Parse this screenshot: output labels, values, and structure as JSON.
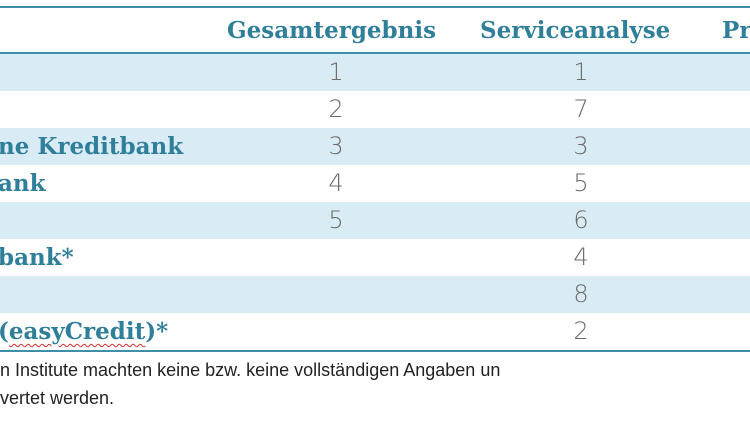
{
  "table": {
    "headers": {
      "gesamt": "Gesamtergebnis",
      "service": "Serviceanalyse",
      "partial": "Pr"
    },
    "rows": [
      {
        "name": "",
        "gesamt": "1",
        "service": "1"
      },
      {
        "name": "",
        "gesamt": "2",
        "service": "7"
      },
      {
        "name": "ne Kreditbank",
        "gesamt": "3",
        "service": "3"
      },
      {
        "name": "ank",
        "gesamt": "4",
        "service": "5"
      },
      {
        "name": "",
        "gesamt": "5",
        "service": "6"
      },
      {
        "name": "bank*",
        "gesamt": "",
        "service": "4"
      },
      {
        "name": "",
        "gesamt": "",
        "service": "8"
      },
      {
        "name_pre": "(",
        "name_mark": "easyCredit",
        "name_post": ")*",
        "gesamt": "",
        "service": "2"
      }
    ]
  },
  "footnote": {
    "line1": "n Institute machten keine bzw. keine vollständigen Angaben un",
    "line2": "vertet werden."
  }
}
